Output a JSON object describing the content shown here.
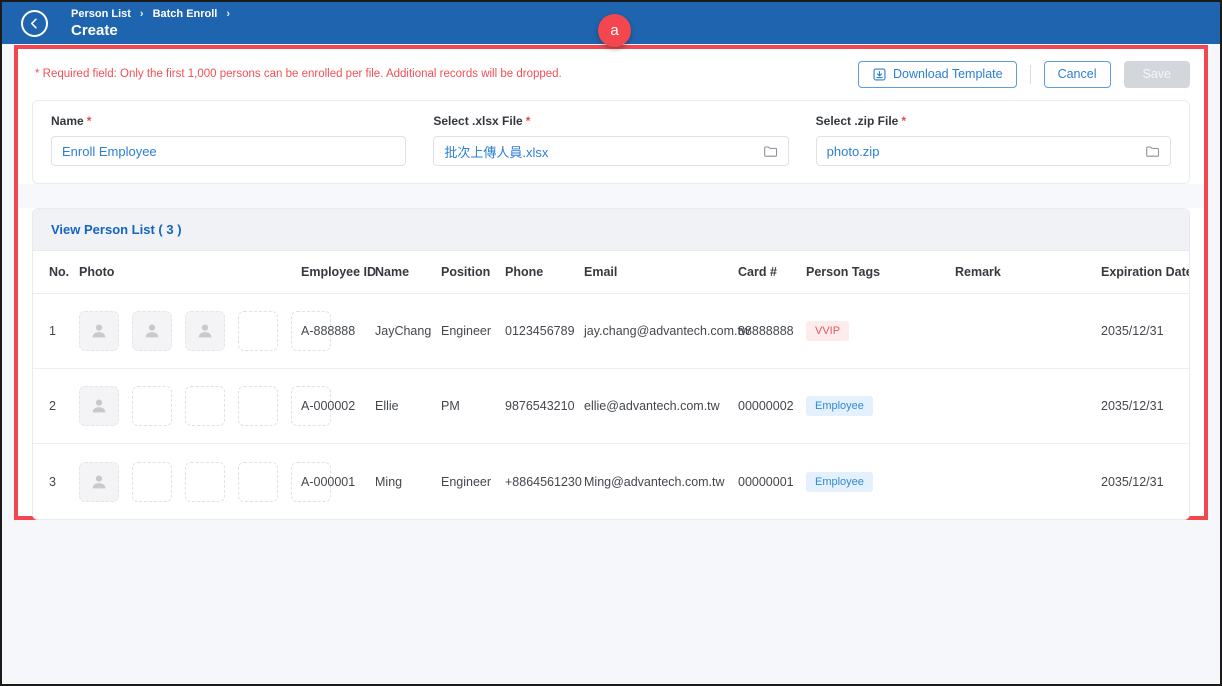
{
  "header": {
    "breadcrumb": [
      "Person List",
      "Batch Enroll"
    ],
    "title": "Create",
    "annotation_badge": "a"
  },
  "toolbar": {
    "warning": "* Required field: Only the first 1,000 persons can be enrolled per file. Additional records will be dropped.",
    "download_template_label": "Download Template",
    "cancel_label": "Cancel",
    "save_label": "Save"
  },
  "form": {
    "name_label": "Name",
    "name_value": "Enroll Employee",
    "xlsx_label": "Select .xlsx File",
    "xlsx_value": "批次上傳人員.xlsx",
    "zip_label": "Select .zip File",
    "zip_value": "photo.zip"
  },
  "person_list": {
    "section_title": "View Person List ( 3 )",
    "columns": [
      "No.",
      "Photo",
      "Employee ID",
      "Name",
      "Position",
      "Phone",
      "Email",
      "Card #",
      "Person Tags",
      "Remark",
      "Expiration Date"
    ],
    "rows": [
      {
        "no": "1",
        "photos": [
          "filled",
          "filled",
          "filled",
          "empty",
          "empty"
        ],
        "employee_id": "A-888888",
        "name": "JayChang",
        "position": "Engineer",
        "phone": "0123456789",
        "email": "jay.chang@advantech.com.tw",
        "card": "88888888",
        "tag": "VVIP",
        "tag_style": "red",
        "remark": "",
        "expiration": "2035/12/31"
      },
      {
        "no": "2",
        "photos": [
          "filled",
          "empty",
          "empty",
          "empty",
          "empty"
        ],
        "employee_id": "A-000002",
        "name": "Ellie",
        "position": "PM",
        "phone": "9876543210",
        "email": "ellie@advantech.com.tw",
        "card": "00000002",
        "tag": "Employee",
        "tag_style": "blue",
        "remark": "",
        "expiration": "2035/12/31"
      },
      {
        "no": "3",
        "photos": [
          "filled",
          "empty",
          "empty",
          "empty",
          "empty"
        ],
        "employee_id": "A-000001",
        "name": "Ming",
        "position": "Engineer",
        "phone": "+8864561230",
        "email": "Ming@advantech.com.tw",
        "card": "00000001",
        "tag": "Employee",
        "tag_style": "blue",
        "remark": "",
        "expiration": "2035/12/31"
      }
    ]
  },
  "colors": {
    "header_bar": "#1f64ae",
    "annotation": "#f4464e",
    "accent_blue": "#2b7fd4",
    "link_blue": "#1565c0",
    "warning_red": "#ef5156",
    "tag_red_bg": "#fdecec",
    "tag_red_text": "#e4595f",
    "tag_blue_bg": "#e4f1fc",
    "tag_blue_text": "#2e8ad8"
  }
}
